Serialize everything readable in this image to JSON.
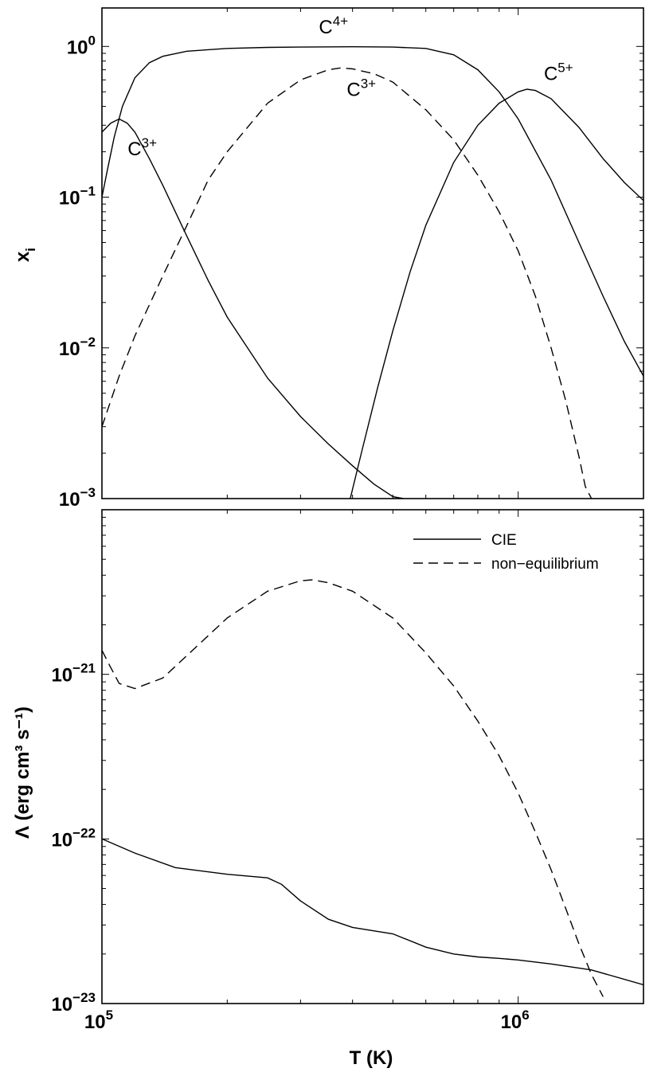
{
  "chart_data": [
    {
      "type": "line",
      "panel": "top",
      "xlabel": "",
      "ylabel_base": "x",
      "ylabel_sub": "i",
      "xscale": "log",
      "yscale": "log",
      "xlim": [
        100000,
        2000000
      ],
      "ylim": [
        0.001,
        1.8
      ],
      "yticks": [
        {
          "value": 0.001,
          "base": "10",
          "exp": "−3"
        },
        {
          "value": 0.01,
          "base": "10",
          "exp": "−2"
        },
        {
          "value": 0.1,
          "base": "10",
          "exp": "−1"
        },
        {
          "value": 1,
          "base": "10",
          "exp": "0"
        }
      ],
      "annotations": [
        {
          "base": "C",
          "sup": "4+",
          "x": 360000,
          "y": 1.22
        },
        {
          "base": "C",
          "sup": "3+",
          "x": 125000,
          "y": 0.19
        },
        {
          "base": "C",
          "sup": "3+",
          "x": 420000,
          "y": 0.47
        },
        {
          "base": "C",
          "sup": "5+",
          "x": 1250000,
          "y": 0.6
        }
      ],
      "series": [
        {
          "style": "solid",
          "x": [
            100000,
            105000,
            110000,
            115000,
            120000,
            130000,
            140000,
            160000,
            180000,
            200000,
            250000,
            300000,
            350000,
            400000,
            450000,
            500000,
            530000
          ],
          "y": [
            0.27,
            0.31,
            0.33,
            0.31,
            0.27,
            0.18,
            0.12,
            0.055,
            0.028,
            0.016,
            0.0063,
            0.0035,
            0.0023,
            0.00165,
            0.00125,
            0.00103,
            0.001
          ]
        },
        {
          "style": "solid",
          "x": [
            100000,
            103000,
            107000,
            112000,
            120000,
            130000,
            140000,
            160000,
            200000,
            250000,
            300000,
            400000,
            500000,
            600000,
            700000,
            800000,
            900000,
            1000000,
            1200000,
            1400000,
            1600000,
            1800000,
            2000000
          ],
          "y": [
            0.1,
            0.15,
            0.25,
            0.4,
            0.62,
            0.78,
            0.86,
            0.93,
            0.97,
            0.985,
            0.99,
            0.995,
            0.99,
            0.97,
            0.88,
            0.7,
            0.5,
            0.33,
            0.13,
            0.05,
            0.022,
            0.011,
            0.0065
          ]
        },
        {
          "style": "solid",
          "x": [
            395000,
            420000,
            460000,
            500000,
            550000,
            600000,
            700000,
            800000,
            900000,
            1000000,
            1050000,
            1100000,
            1200000,
            1400000,
            1600000,
            1800000,
            2000000
          ],
          "y": [
            0.001,
            0.002,
            0.0055,
            0.013,
            0.032,
            0.065,
            0.17,
            0.3,
            0.42,
            0.5,
            0.52,
            0.51,
            0.45,
            0.29,
            0.18,
            0.125,
            0.095
          ]
        },
        {
          "style": "dashed",
          "x": [
            100000,
            110000,
            120000,
            140000,
            160000,
            180000,
            200000,
            250000,
            300000,
            350000,
            375000,
            400000,
            450000,
            500000,
            600000,
            700000,
            800000,
            900000,
            1000000,
            1100000,
            1200000,
            1300000,
            1400000,
            1450000,
            1500000
          ],
          "y": [
            0.003,
            0.0065,
            0.012,
            0.03,
            0.065,
            0.13,
            0.2,
            0.42,
            0.6,
            0.7,
            0.72,
            0.71,
            0.66,
            0.58,
            0.38,
            0.24,
            0.14,
            0.08,
            0.044,
            0.022,
            0.01,
            0.0045,
            0.0019,
            0.0012,
            0.001
          ]
        }
      ]
    },
    {
      "type": "line",
      "panel": "bottom",
      "xlabel": "T (K)",
      "ylabel": "Λ (erg cm³ s⁻¹)",
      "xscale": "log",
      "yscale": "log",
      "xlim": [
        100000,
        2000000
      ],
      "ylim": [
        1e-23,
        1e-20
      ],
      "xticks": [
        {
          "value": 100000,
          "base": "10",
          "exp": "5"
        },
        {
          "value": 1000000,
          "base": "10",
          "exp": "6"
        }
      ],
      "yticks": [
        {
          "value": 1e-23,
          "base": "10",
          "exp": "−23"
        },
        {
          "value": 1e-22,
          "base": "10",
          "exp": "−22"
        },
        {
          "value": 1e-21,
          "base": "10",
          "exp": "−21"
        }
      ],
      "legend_position": "top-right",
      "series": [
        {
          "name": "CIE",
          "style": "solid",
          "x": [
            100000,
            120000,
            150000,
            200000,
            250000,
            270000,
            300000,
            350000,
            400000,
            500000,
            600000,
            700000,
            800000,
            900000,
            1000000,
            1200000,
            1500000,
            2000000
          ],
          "y": [
            1e-22,
            8.2e-23,
            6.7e-23,
            6.1e-23,
            5.8e-23,
            5.3e-23,
            4.2e-23,
            3.25e-23,
            2.9e-23,
            2.65e-23,
            2.2e-23,
            2e-23,
            1.92e-23,
            1.88e-23,
            1.84e-23,
            1.74e-23,
            1.6e-23,
            1.3e-23
          ]
        },
        {
          "name": "non−equilibrium",
          "style": "dashed",
          "x": [
            100000,
            104000,
            110000,
            120000,
            140000,
            160000,
            200000,
            250000,
            300000,
            320000,
            350000,
            400000,
            500000,
            600000,
            700000,
            800000,
            900000,
            1000000,
            1100000,
            1200000,
            1300000,
            1400000,
            1500000,
            1600000
          ],
          "y": [
            1.4e-21,
            1.15e-21,
            8.8e-22,
            8.2e-22,
            9.5e-22,
            1.3e-21,
            2.2e-21,
            3.2e-21,
            3.7e-21,
            3.75e-21,
            3.6e-21,
            3.2e-21,
            2.2e-21,
            1.35e-21,
            8.5e-22,
            5.2e-22,
            3.2e-22,
            1.9e-22,
            1.1e-22,
            6.5e-23,
            3.8e-23,
            2.3e-23,
            1.5e-23,
            1.1e-23
          ]
        }
      ]
    }
  ]
}
